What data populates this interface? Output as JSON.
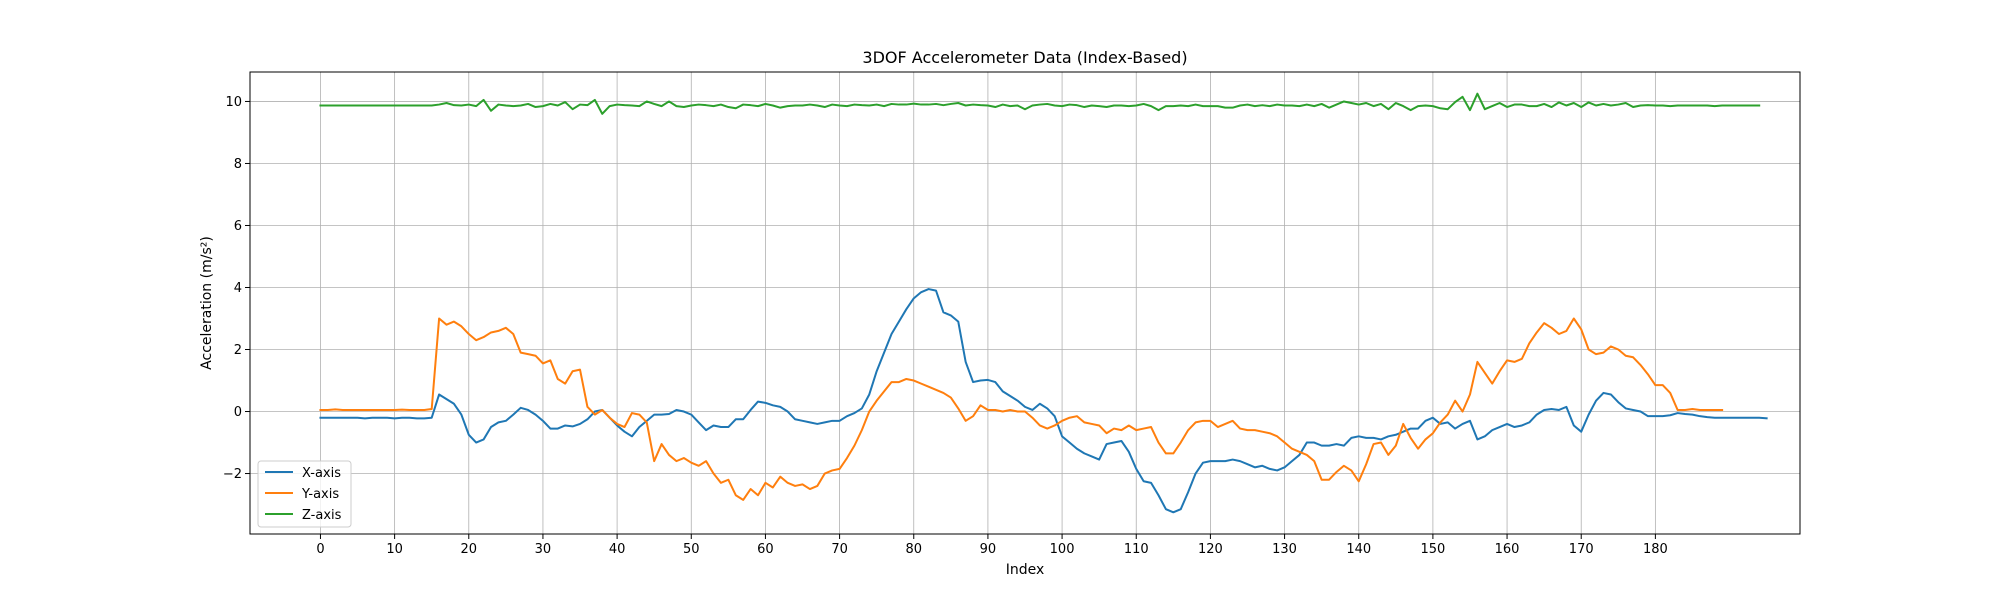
{
  "chart_data": {
    "type": "line",
    "title": "3DOF Accelerometer Data (Index-Based)",
    "xlabel": "Index",
    "ylabel": "Acceleration (m/s²)",
    "xlim": [
      -9.5,
      199.5
    ],
    "ylim": [
      -3.95,
      10.95
    ],
    "xticks": [
      0,
      10,
      20,
      30,
      40,
      50,
      60,
      70,
      80,
      90,
      100,
      110,
      120,
      130,
      140,
      150,
      160,
      170,
      180
    ],
    "yticks": [
      -2,
      0,
      2,
      4,
      6,
      8,
      10
    ],
    "grid": true,
    "legend_position": "lower-left",
    "x_start": 0,
    "series": [
      {
        "name": "X-axis",
        "color": "#1f77b4",
        "values": [
          -0.2,
          -0.2,
          -0.2,
          -0.2,
          -0.2,
          -0.2,
          -0.22,
          -0.2,
          -0.2,
          -0.2,
          -0.22,
          -0.2,
          -0.2,
          -0.22,
          -0.22,
          -0.2,
          0.55,
          0.4,
          0.25,
          -0.1,
          -0.75,
          -1.0,
          -0.9,
          -0.5,
          -0.35,
          -0.3,
          -0.1,
          0.12,
          0.05,
          -0.1,
          -0.3,
          -0.55,
          -0.55,
          -0.45,
          -0.48,
          -0.4,
          -0.25,
          0.0,
          0.05,
          -0.2,
          -0.45,
          -0.65,
          -0.8,
          -0.5,
          -0.3,
          -0.1,
          -0.1,
          -0.08,
          0.05,
          0.0,
          -0.1,
          -0.35,
          -0.6,
          -0.45,
          -0.5,
          -0.5,
          -0.25,
          -0.25,
          0.05,
          0.32,
          0.28,
          0.2,
          0.15,
          0.0,
          -0.25,
          -0.3,
          -0.35,
          -0.4,
          -0.35,
          -0.3,
          -0.3,
          -0.15,
          -0.05,
          0.1,
          0.55,
          1.3,
          1.9,
          2.5,
          2.9,
          3.3,
          3.65,
          3.85,
          3.95,
          3.9,
          3.2,
          3.1,
          2.9,
          1.6,
          0.95,
          1.0,
          1.02,
          0.95,
          0.65,
          0.5,
          0.35,
          0.15,
          0.05,
          0.25,
          0.1,
          -0.15,
          -0.8,
          -1.0,
          -1.2,
          -1.35,
          -1.45,
          -1.55,
          -1.05,
          -1.0,
          -0.95,
          -1.3,
          -1.85,
          -2.25,
          -2.3,
          -2.7,
          -3.15,
          -3.25,
          -3.15,
          -2.6,
          -2.0,
          -1.65,
          -1.6,
          -1.6,
          -1.6,
          -1.55,
          -1.6,
          -1.7,
          -1.8,
          -1.75,
          -1.85,
          -1.9,
          -1.8,
          -1.6,
          -1.4,
          -1.0,
          -1.0,
          -1.1,
          -1.1,
          -1.05,
          -1.1,
          -0.85,
          -0.8,
          -0.85,
          -0.85,
          -0.9,
          -0.8,
          -0.75,
          -0.65,
          -0.55,
          -0.55,
          -0.3,
          -0.2,
          -0.4,
          -0.35,
          -0.55,
          -0.4,
          -0.3,
          -0.9,
          -0.8,
          -0.6,
          -0.5,
          -0.4,
          -0.5,
          -0.45,
          -0.35,
          -0.1,
          0.05,
          0.08,
          0.05,
          0.15,
          -0.45,
          -0.65,
          -0.1,
          0.35,
          0.6,
          0.55,
          0.3,
          0.1,
          0.05,
          0.0,
          -0.15,
          -0.15,
          -0.15,
          -0.12,
          -0.05,
          -0.08,
          -0.1,
          -0.15,
          -0.18,
          -0.2,
          -0.2,
          -0.2,
          -0.2,
          -0.2,
          -0.2,
          -0.2,
          -0.22
        ]
      },
      {
        "name": "Y-axis",
        "color": "#ff7f0e",
        "values": [
          0.05,
          0.05,
          0.07,
          0.05,
          0.05,
          0.05,
          0.05,
          0.05,
          0.05,
          0.05,
          0.05,
          0.06,
          0.05,
          0.05,
          0.05,
          0.08,
          3.0,
          2.8,
          2.9,
          2.75,
          2.5,
          2.3,
          2.4,
          2.55,
          2.6,
          2.7,
          2.5,
          1.9,
          1.85,
          1.8,
          1.55,
          1.65,
          1.05,
          0.9,
          1.3,
          1.35,
          0.15,
          -0.1,
          0.05,
          -0.2,
          -0.4,
          -0.5,
          -0.05,
          -0.1,
          -0.35,
          -1.6,
          -1.05,
          -1.4,
          -1.6,
          -1.5,
          -1.65,
          -1.75,
          -1.6,
          -2.0,
          -2.3,
          -2.2,
          -2.7,
          -2.85,
          -2.5,
          -2.7,
          -2.3,
          -2.45,
          -2.1,
          -2.3,
          -2.4,
          -2.35,
          -2.5,
          -2.4,
          -2.0,
          -1.9,
          -1.85,
          -1.5,
          -1.1,
          -0.6,
          0.0,
          0.35,
          0.65,
          0.95,
          0.95,
          1.05,
          1.0,
          0.9,
          0.8,
          0.7,
          0.6,
          0.45,
          0.1,
          -0.3,
          -0.15,
          0.2,
          0.05,
          0.05,
          0.0,
          0.05,
          0.0,
          0.0,
          -0.2,
          -0.45,
          -0.55,
          -0.45,
          -0.3,
          -0.2,
          -0.15,
          -0.35,
          -0.4,
          -0.45,
          -0.7,
          -0.55,
          -0.6,
          -0.45,
          -0.6,
          -0.55,
          -0.5,
          -1.0,
          -1.35,
          -1.35,
          -1.0,
          -0.6,
          -0.35,
          -0.3,
          -0.3,
          -0.5,
          -0.4,
          -0.3,
          -0.55,
          -0.6,
          -0.6,
          -0.65,
          -0.7,
          -0.8,
          -1.0,
          -1.2,
          -1.3,
          -1.4,
          -1.6,
          -2.2,
          -2.2,
          -1.95,
          -1.75,
          -1.9,
          -2.25,
          -1.7,
          -1.05,
          -1.0,
          -1.4,
          -1.1,
          -0.4,
          -0.85,
          -1.2,
          -0.9,
          -0.7,
          -0.35,
          -0.1,
          0.35,
          0.0,
          0.55,
          1.6,
          1.25,
          0.9,
          1.3,
          1.65,
          1.6,
          1.7,
          2.2,
          2.55,
          2.85,
          2.7,
          2.5,
          2.6,
          3.0,
          2.65,
          2.0,
          1.85,
          1.9,
          2.1,
          2.0,
          1.8,
          1.75,
          1.5,
          1.2,
          0.85,
          0.85,
          0.6,
          0.05,
          0.05,
          0.08,
          0.05,
          0.05,
          0.05,
          0.05
        ]
      },
      {
        "name": "Z-axis",
        "color": "#2ca02c",
        "values": [
          9.87,
          9.87,
          9.87,
          9.87,
          9.87,
          9.87,
          9.87,
          9.87,
          9.87,
          9.87,
          9.87,
          9.87,
          9.87,
          9.87,
          9.87,
          9.87,
          9.9,
          9.95,
          9.88,
          9.87,
          9.9,
          9.85,
          10.05,
          9.7,
          9.9,
          9.87,
          9.85,
          9.87,
          9.92,
          9.82,
          9.85,
          9.92,
          9.87,
          9.98,
          9.75,
          9.9,
          9.88,
          10.05,
          9.6,
          9.85,
          9.9,
          9.88,
          9.87,
          9.85,
          10.0,
          9.92,
          9.85,
          10.0,
          9.85,
          9.82,
          9.87,
          9.9,
          9.88,
          9.85,
          9.9,
          9.82,
          9.78,
          9.9,
          9.88,
          9.85,
          9.92,
          9.87,
          9.8,
          9.85,
          9.87,
          9.87,
          9.9,
          9.87,
          9.82,
          9.9,
          9.87,
          9.85,
          9.9,
          9.88,
          9.87,
          9.9,
          9.85,
          9.92,
          9.9,
          9.9,
          9.93,
          9.9,
          9.9,
          9.92,
          9.88,
          9.92,
          9.95,
          9.87,
          9.9,
          9.88,
          9.87,
          9.82,
          9.9,
          9.85,
          9.87,
          9.75,
          9.87,
          9.9,
          9.92,
          9.87,
          9.85,
          9.9,
          9.88,
          9.82,
          9.87,
          9.85,
          9.82,
          9.87,
          9.87,
          9.85,
          9.87,
          9.92,
          9.85,
          9.72,
          9.85,
          9.85,
          9.87,
          9.85,
          9.9,
          9.85,
          9.85,
          9.85,
          9.8,
          9.8,
          9.87,
          9.9,
          9.85,
          9.88,
          9.85,
          9.9,
          9.87,
          9.87,
          9.85,
          9.9,
          9.85,
          9.92,
          9.8,
          9.9,
          10.0,
          9.95,
          9.9,
          9.95,
          9.85,
          9.92,
          9.75,
          9.95,
          9.85,
          9.72,
          9.85,
          9.87,
          9.85,
          9.78,
          9.75,
          9.98,
          10.15,
          9.72,
          10.25,
          9.75,
          9.85,
          9.95,
          9.82,
          9.9,
          9.9,
          9.85,
          9.85,
          9.92,
          9.82,
          9.97,
          9.87,
          9.95,
          9.82,
          9.97,
          9.87,
          9.92,
          9.87,
          9.9,
          9.95,
          9.82,
          9.87,
          9.88,
          9.87,
          9.87,
          9.85,
          9.87,
          9.87,
          9.87,
          9.87,
          9.87,
          9.85,
          9.87,
          9.87,
          9.87,
          9.87,
          9.87,
          9.87
        ]
      }
    ]
  }
}
